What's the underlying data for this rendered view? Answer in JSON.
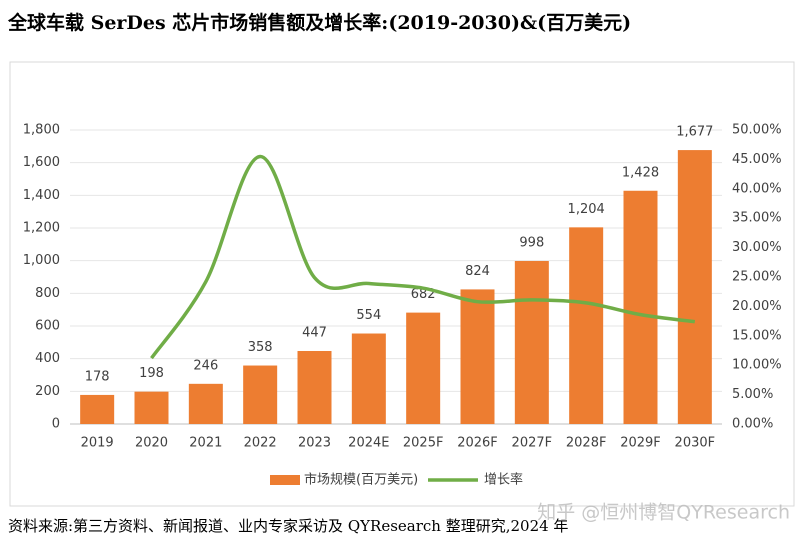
{
  "chart_data": {
    "type": "bar-line",
    "title": "全球车载 SerDes 芯片市场销售额及增长率:(2019-2030)&(百万美元)",
    "categories": [
      "2019",
      "2020",
      "2021",
      "2022",
      "2023",
      "2024E",
      "2025F",
      "2026F",
      "2027F",
      "2028F",
      "2029F",
      "2030F"
    ],
    "series": [
      {
        "name": "市场规模(百万美元)",
        "color": "#ED7D31",
        "type": "bar",
        "values": [
          178,
          198,
          246,
          358,
          447,
          554,
          682,
          824,
          998,
          1204,
          1428,
          1677
        ],
        "value_labels": [
          "178",
          "198",
          "246",
          "358",
          "447",
          "554",
          "682",
          "824",
          "998",
          "1,204",
          "1,428",
          "1,677"
        ]
      },
      {
        "name": "增长率",
        "color": "#70AD47",
        "type": "line",
        "axis": "y2",
        "values": [
          null,
          11.2,
          24.2,
          45.5,
          24.9,
          23.9,
          23.1,
          20.8,
          21.1,
          20.6,
          18.6,
          17.4
        ]
      }
    ],
    "ylim": [
      0,
      1800
    ],
    "yticks": [
      0,
      200,
      400,
      600,
      800,
      {
        "value": 1000,
        "label": "1,000"
      },
      {
        "value": 1200,
        "label": "1,200"
      },
      {
        "value": 1400,
        "label": "1,400"
      },
      {
        "value": 1600,
        "label": "1,600"
      },
      {
        "value": 1800,
        "label": "1,800"
      }
    ],
    "y2lim": [
      0,
      50
    ],
    "y2ticks": [
      {
        "value": 0,
        "label": "0.00%"
      },
      {
        "value": 5,
        "label": "5.00%"
      },
      {
        "value": 10,
        "label": "10.00%"
      },
      {
        "value": 15,
        "label": "15.00%"
      },
      {
        "value": 20,
        "label": "20.00%"
      },
      {
        "value": 25,
        "label": "25.00%"
      },
      {
        "value": 30,
        "label": "30.00%"
      },
      {
        "value": 35,
        "label": "35.00%"
      },
      {
        "value": 40,
        "label": "40.00%"
      },
      {
        "value": 45,
        "label": "45.00%"
      },
      {
        "value": 50,
        "label": "50.00%"
      }
    ],
    "grid": true,
    "legend": "bottom"
  },
  "source": "资料来源:第三方资料、新闻报道、业内专家采访及 QYResearch 整理研究,2024 年",
  "watermark": "知乎 @恒州博智QYResearch"
}
